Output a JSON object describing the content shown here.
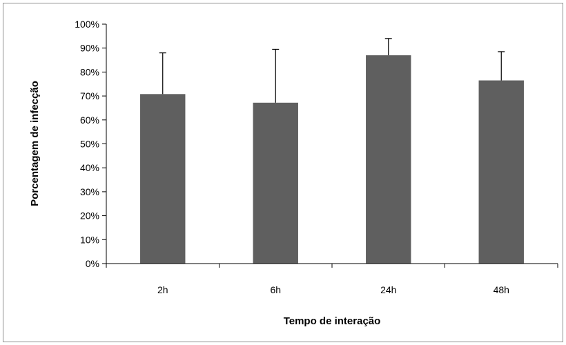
{
  "chart_data": {
    "type": "bar",
    "title": "",
    "xlabel": "Tempo de interação",
    "ylabel": "Porcentagem de infecção",
    "categories": [
      "2h",
      "6h",
      "24h",
      "48h"
    ],
    "values": [
      70.8,
      67.2,
      87.0,
      76.5
    ],
    "error_upper": [
      17.2,
      22.3,
      7.0,
      12.0
    ],
    "ylim": [
      0,
      100
    ],
    "ytick_step": 10,
    "ytick_labels": [
      "0%",
      "10%",
      "20%",
      "30%",
      "40%",
      "50%",
      "60%",
      "70%",
      "80%",
      "90%",
      "100%"
    ],
    "grid": false,
    "legend": "none",
    "colors": {
      "bar": "#5f5f5f",
      "error_bar": "#000000",
      "axis": "#000000"
    }
  }
}
